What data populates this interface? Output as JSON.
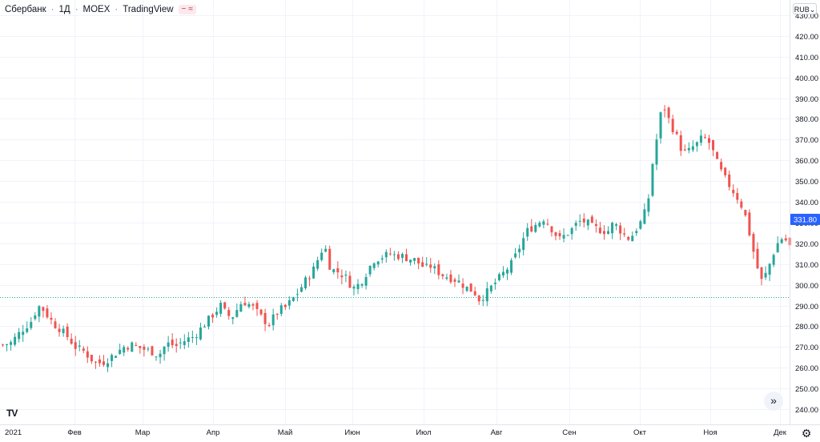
{
  "header": {
    "symbol": "Сбербанк",
    "interval": "1Д",
    "exchange": "MOEX",
    "source": "TradingView",
    "badge_text": "≈"
  },
  "currency_button": "RUB",
  "price_scale": {
    "labels": [
      "430.00",
      "420.00",
      "410.00",
      "400.00",
      "390.00",
      "380.00",
      "370.00",
      "360.00",
      "350.00",
      "340.00",
      "330.00",
      "320.00",
      "310.00",
      "300.00",
      "290.00",
      "280.00",
      "270.00",
      "260.00",
      "250.00",
      "240.00"
    ]
  },
  "time_scale": {
    "labels": [
      "2021",
      "Фев",
      "Мар",
      "Апр",
      "Май",
      "Июн",
      "Июл",
      "Авг",
      "Сен",
      "Окт",
      "Ноя",
      "Дек"
    ]
  },
  "last_price_label": "331.80",
  "colors": {
    "up": "#26a69a",
    "down": "#ef5350",
    "grid": "#f0f3fa",
    "last_price": "#2962ff",
    "dotted_line": "#26a69a"
  },
  "icons": {
    "scroll_to_realtime": "double-chevron-right-icon",
    "settings": "gear-icon",
    "logo": "tradingview-logo"
  },
  "chart_data": {
    "type": "candlestick",
    "title": "Сбербанк · 1Д · MOEX",
    "x_label": "",
    "y_label": "",
    "y_range": [
      237,
      434
    ],
    "month_labels": [
      "2021",
      "Фев",
      "Мар",
      "Апр",
      "Май",
      "Июн",
      "Июл",
      "Авг",
      "Сен",
      "Окт",
      "Ноя",
      "Дек"
    ],
    "horizontal_reference_level": 294,
    "last_price": 331.8,
    "grid": true,
    "control_points": [
      [
        0,
        271
      ],
      [
        6,
        272
      ],
      [
        14,
        278
      ],
      [
        22,
        283
      ],
      [
        26,
        290
      ],
      [
        30,
        288
      ],
      [
        38,
        281
      ],
      [
        42,
        279
      ],
      [
        48,
        275
      ],
      [
        54,
        270
      ],
      [
        60,
        268
      ],
      [
        66,
        264
      ],
      [
        70,
        262
      ],
      [
        76,
        263
      ],
      [
        82,
        266
      ],
      [
        86,
        268
      ],
      [
        90,
        270
      ],
      [
        96,
        271
      ],
      [
        100,
        270
      ],
      [
        104,
        269
      ],
      [
        110,
        268
      ],
      [
        116,
        266
      ],
      [
        120,
        270
      ],
      [
        124,
        272
      ],
      [
        128,
        270
      ],
      [
        132,
        272
      ],
      [
        138,
        274
      ],
      [
        142,
        275
      ],
      [
        146,
        278
      ],
      [
        150,
        281
      ],
      [
        154,
        284
      ],
      [
        158,
        287
      ],
      [
        162,
        290
      ],
      [
        166,
        286
      ],
      [
        170,
        284
      ],
      [
        174,
        288
      ],
      [
        178,
        292
      ],
      [
        182,
        291
      ],
      [
        186,
        289
      ],
      [
        190,
        286
      ],
      [
        194,
        283
      ],
      [
        198,
        281
      ],
      [
        202,
        285
      ],
      [
        206,
        288
      ],
      [
        210,
        289
      ],
      [
        214,
        292
      ],
      [
        218,
        295
      ],
      [
        222,
        299
      ],
      [
        226,
        303
      ],
      [
        230,
        306
      ],
      [
        234,
        312
      ],
      [
        238,
        318
      ],
      [
        240,
        317
      ],
      [
        242,
        310
      ],
      [
        246,
        307
      ],
      [
        250,
        306
      ],
      [
        256,
        303
      ],
      [
        260,
        298
      ],
      [
        264,
        300
      ],
      [
        268,
        303
      ],
      [
        272,
        308
      ],
      [
        276,
        312
      ],
      [
        280,
        313
      ],
      [
        284,
        314
      ],
      [
        288,
        315
      ],
      [
        292,
        314
      ],
      [
        296,
        314
      ],
      [
        300,
        313
      ],
      [
        306,
        312
      ],
      [
        310,
        310
      ],
      [
        314,
        308
      ],
      [
        318,
        309
      ],
      [
        322,
        307
      ],
      [
        326,
        305
      ],
      [
        330,
        304
      ],
      [
        334,
        303
      ],
      [
        338,
        302
      ],
      [
        342,
        300
      ],
      [
        346,
        298
      ],
      [
        350,
        297
      ],
      [
        352,
        295
      ],
      [
        354,
        293
      ],
      [
        358,
        295
      ],
      [
        362,
        298
      ],
      [
        366,
        301
      ],
      [
        370,
        304
      ],
      [
        374,
        307
      ],
      [
        378,
        310
      ],
      [
        382,
        315
      ],
      [
        386,
        321
      ],
      [
        390,
        326
      ],
      [
        394,
        328
      ],
      [
        398,
        330
      ],
      [
        402,
        332
      ],
      [
        406,
        329
      ],
      [
        410,
        325
      ],
      [
        414,
        322
      ],
      [
        418,
        324
      ],
      [
        422,
        326
      ],
      [
        426,
        329
      ],
      [
        430,
        331
      ],
      [
        434,
        330
      ],
      [
        438,
        328
      ],
      [
        442,
        327
      ],
      [
        446,
        326
      ],
      [
        450,
        326
      ],
      [
        454,
        330
      ],
      [
        458,
        327
      ],
      [
        462,
        324
      ],
      [
        466,
        322
      ],
      [
        470,
        326
      ],
      [
        474,
        330
      ],
      [
        478,
        336
      ],
      [
        480,
        342
      ],
      [
        482,
        355
      ],
      [
        484,
        362
      ],
      [
        486,
        370
      ],
      [
        488,
        378
      ],
      [
        490,
        386
      ],
      [
        492,
        385
      ],
      [
        496,
        378
      ],
      [
        500,
        373
      ],
      [
        504,
        366
      ],
      [
        508,
        363
      ],
      [
        512,
        366
      ],
      [
        516,
        368
      ],
      [
        520,
        371
      ],
      [
        524,
        370
      ],
      [
        528,
        364
      ],
      [
        532,
        357
      ],
      [
        536,
        352
      ],
      [
        540,
        348
      ],
      [
        544,
        344
      ],
      [
        548,
        340
      ],
      [
        552,
        333
      ],
      [
        556,
        322
      ],
      [
        560,
        310
      ],
      [
        564,
        302
      ],
      [
        568,
        306
      ],
      [
        572,
        314
      ],
      [
        576,
        320
      ],
      [
        580,
        323
      ],
      [
        584,
        320
      ],
      [
        586,
        317
      ]
    ]
  }
}
